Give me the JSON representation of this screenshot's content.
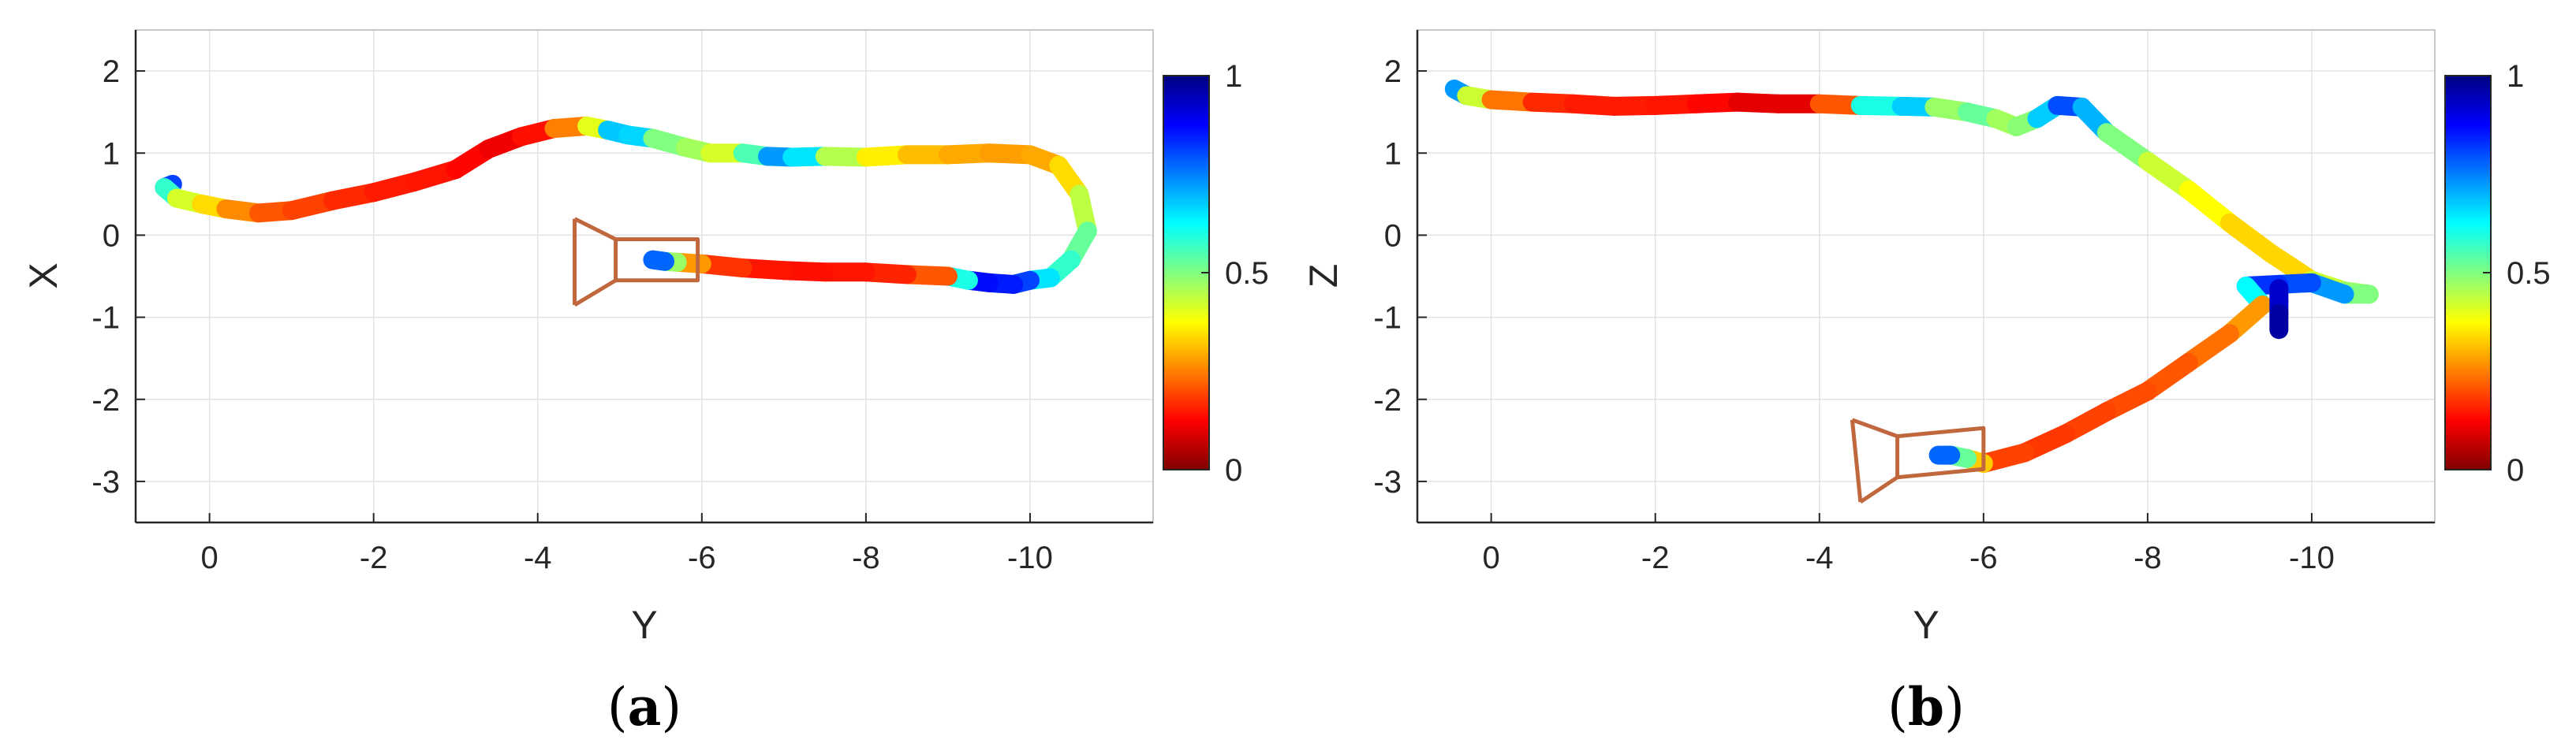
{
  "chart_data": [
    {
      "type": "scatter",
      "panel": "(a)",
      "caption_open": "(",
      "caption_letter": "a",
      "caption_close": ")",
      "xlabel": "Y",
      "ylabel": "X",
      "xlim": [
        0.9,
        -11.5
      ],
      "ylim": [
        -3.5,
        2.5
      ],
      "xticks": [
        0,
        -2,
        -4,
        -6,
        -8,
        -10
      ],
      "xtick_labels": [
        "0",
        "-2",
        "-4",
        "-6",
        "-8",
        "-10"
      ],
      "yticks": [
        2,
        1,
        0,
        -1,
        -2,
        -3
      ],
      "ytick_labels": [
        "2",
        "1",
        "0",
        "-1",
        "-2",
        "-3"
      ],
      "grid": true,
      "colorbar": {
        "colormap": "jet",
        "range": [
          0,
          1
        ],
        "ticks": [
          1,
          0.5,
          0
        ],
        "tick_labels": [
          "1",
          "0.5",
          "0"
        ]
      },
      "trajectory": [
        {
          "x": -0.45,
          "y": 0.62,
          "c": 0.08
        },
        {
          "x": -0.55,
          "y": 0.58,
          "c": 0.3
        },
        {
          "x": -0.4,
          "y": 0.45,
          "c": 0.55
        },
        {
          "x": -0.1,
          "y": 0.38,
          "c": 0.62
        },
        {
          "x": 0.2,
          "y": 0.32,
          "c": 0.7
        },
        {
          "x": 0.6,
          "y": 0.27,
          "c": 0.78
        },
        {
          "x": 1.0,
          "y": 0.3,
          "c": 0.8
        },
        {
          "x": 1.5,
          "y": 0.42,
          "c": 0.82
        },
        {
          "x": 2.0,
          "y": 0.52,
          "c": 0.85
        },
        {
          "x": 2.5,
          "y": 0.65,
          "c": 0.85
        },
        {
          "x": 3.0,
          "y": 0.8,
          "c": 0.86
        },
        {
          "x": 3.4,
          "y": 1.05,
          "c": 0.88
        },
        {
          "x": 3.8,
          "y": 1.2,
          "c": 0.9
        },
        {
          "x": 4.2,
          "y": 1.3,
          "c": 0.82
        },
        {
          "x": 4.6,
          "y": 1.33,
          "c": 0.68
        },
        {
          "x": 4.85,
          "y": 1.28,
          "c": 0.52
        },
        {
          "x": 5.1,
          "y": 1.22,
          "c": 0.12
        },
        {
          "x": 5.4,
          "y": 1.18,
          "c": 0.55
        },
        {
          "x": 5.8,
          "y": 1.07,
          "c": 0.45
        },
        {
          "x": 6.1,
          "y": 1.0,
          "c": 0.62
        },
        {
          "x": 6.5,
          "y": 1.0,
          "c": 0.55
        },
        {
          "x": 6.8,
          "y": 0.96,
          "c": 0.35
        },
        {
          "x": 7.1,
          "y": 0.95,
          "c": 0.2
        },
        {
          "x": 7.5,
          "y": 0.96,
          "c": 0.5
        },
        {
          "x": 8.0,
          "y": 0.95,
          "c": 0.6
        },
        {
          "x": 8.5,
          "y": 0.98,
          "c": 0.68
        },
        {
          "x": 9.0,
          "y": 0.98,
          "c": 0.7
        },
        {
          "x": 9.5,
          "y": 1.0,
          "c": 0.72
        },
        {
          "x": 10.0,
          "y": 0.98,
          "c": 0.72
        },
        {
          "x": 10.35,
          "y": 0.85,
          "c": 0.7
        },
        {
          "x": 10.6,
          "y": 0.5,
          "c": 0.62
        },
        {
          "x": 10.7,
          "y": 0.05,
          "c": 0.5
        },
        {
          "x": 10.5,
          "y": -0.3,
          "c": 0.45
        },
        {
          "x": 10.25,
          "y": -0.52,
          "c": 0.4
        },
        {
          "x": 10.0,
          "y": -0.55,
          "c": 0.3
        },
        {
          "x": 9.8,
          "y": -0.6,
          "c": 0.08
        },
        {
          "x": 9.5,
          "y": -0.58,
          "c": 0.22
        },
        {
          "x": 9.25,
          "y": -0.55,
          "c": 0.05
        },
        {
          "x": 9.0,
          "y": -0.5,
          "c": 0.75
        },
        {
          "x": 8.5,
          "y": -0.48,
          "c": 0.83
        },
        {
          "x": 8.0,
          "y": -0.45,
          "c": 0.85
        },
        {
          "x": 7.5,
          "y": -0.45,
          "c": 0.86
        },
        {
          "x": 7.0,
          "y": -0.43,
          "c": 0.86
        },
        {
          "x": 6.5,
          "y": -0.4,
          "c": 0.85
        },
        {
          "x": 6.0,
          "y": -0.35,
          "c": 0.8
        },
        {
          "x": 5.7,
          "y": -0.33,
          "c": 0.65
        },
        {
          "x": 5.55,
          "y": -0.32,
          "c": 0.4
        },
        {
          "x": 5.4,
          "y": -0.3,
          "c": 0.05
        }
      ],
      "camera": {
        "color": "#c0673d",
        "back": [
          {
            "x": 4.45,
            "y": 0.2
          },
          {
            "x": 4.45,
            "y": -0.85
          }
        ],
        "front": [
          {
            "x": 4.95,
            "y": -0.05
          },
          {
            "x": 4.95,
            "y": -0.55
          },
          {
            "x": 5.95,
            "y": -0.55
          },
          {
            "x": 5.95,
            "y": -0.05
          }
        ]
      }
    },
    {
      "type": "scatter",
      "panel": "(b)",
      "caption_open": "(",
      "caption_letter": "b",
      "caption_close": ")",
      "xlabel": "Y",
      "ylabel": "Z",
      "xlim": [
        0.9,
        -11.5
      ],
      "ylim": [
        -3.5,
        2.5
      ],
      "xticks": [
        0,
        -2,
        -4,
        -6,
        -8,
        -10
      ],
      "xtick_labels": [
        "0",
        "-2",
        "-4",
        "-6",
        "-8",
        "-10"
      ],
      "yticks": [
        2,
        1,
        0,
        -1,
        -2,
        -3
      ],
      "ytick_labels": [
        "2",
        "1",
        "0",
        "-1",
        "-2",
        "-3"
      ],
      "grid": true,
      "colorbar": {
        "colormap": "jet",
        "range": [
          0,
          1
        ],
        "ticks": [
          1,
          0.5,
          0
        ],
        "tick_labels": [
          "1",
          "0.5",
          "0"
        ]
      },
      "trajectory": [
        {
          "x": -0.45,
          "y": 1.78,
          "c": 0.1
        },
        {
          "x": -0.3,
          "y": 1.7,
          "c": 0.45
        },
        {
          "x": 0.0,
          "y": 1.65,
          "c": 0.7
        },
        {
          "x": 0.5,
          "y": 1.62,
          "c": 0.82
        },
        {
          "x": 1.0,
          "y": 1.6,
          "c": 0.85
        },
        {
          "x": 1.5,
          "y": 1.57,
          "c": 0.85
        },
        {
          "x": 2.0,
          "y": 1.58,
          "c": 0.85
        },
        {
          "x": 2.5,
          "y": 1.6,
          "c": 0.86
        },
        {
          "x": 3.0,
          "y": 1.62,
          "c": 0.88
        },
        {
          "x": 3.5,
          "y": 1.6,
          "c": 0.92
        },
        {
          "x": 4.0,
          "y": 1.6,
          "c": 0.88
        },
        {
          "x": 4.5,
          "y": 1.58,
          "c": 0.7
        },
        {
          "x": 5.0,
          "y": 1.57,
          "c": 0.1
        },
        {
          "x": 5.4,
          "y": 1.56,
          "c": 0.55
        },
        {
          "x": 5.8,
          "y": 1.5,
          "c": 0.5
        },
        {
          "x": 6.15,
          "y": 1.42,
          "c": 0.45
        },
        {
          "x": 6.4,
          "y": 1.32,
          "c": 0.62
        },
        {
          "x": 6.65,
          "y": 1.42,
          "c": 0.4
        },
        {
          "x": 6.9,
          "y": 1.58,
          "c": 0.25
        },
        {
          "x": 7.2,
          "y": 1.56,
          "c": 0.15
        },
        {
          "x": 7.5,
          "y": 1.25,
          "c": 0.45
        },
        {
          "x": 8.0,
          "y": 0.9,
          "c": 0.55
        },
        {
          "x": 8.5,
          "y": 0.55,
          "c": 0.6
        },
        {
          "x": 9.0,
          "y": 0.15,
          "c": 0.65
        },
        {
          "x": 9.5,
          "y": -0.22,
          "c": 0.68
        },
        {
          "x": 10.0,
          "y": -0.55,
          "c": 0.65
        },
        {
          "x": 10.4,
          "y": -0.68,
          "c": 0.5
        },
        {
          "x": 10.7,
          "y": -0.72,
          "c": 0.55
        },
        {
          "x": 10.4,
          "y": -0.72,
          "c": 0.45
        },
        {
          "x": 10.0,
          "y": -0.58,
          "c": 0.1
        },
        {
          "x": 9.6,
          "y": -0.6,
          "c": 0.3
        },
        {
          "x": 9.2,
          "y": -0.62,
          "c": 0.05
        },
        {
          "x": 9.4,
          "y": -0.85,
          "c": 0.7
        },
        {
          "x": 9.0,
          "y": -1.2,
          "c": 0.75
        },
        {
          "x": 8.5,
          "y": -1.55,
          "c": 0.78
        },
        {
          "x": 8.0,
          "y": -1.9,
          "c": 0.8
        },
        {
          "x": 7.5,
          "y": -2.15,
          "c": 0.8
        },
        {
          "x": 7.0,
          "y": -2.42,
          "c": 0.82
        },
        {
          "x": 6.5,
          "y": -2.65,
          "c": 0.82
        },
        {
          "x": 6.0,
          "y": -2.78,
          "c": 0.8
        },
        {
          "x": 5.8,
          "y": -2.72,
          "c": 0.55
        },
        {
          "x": 5.6,
          "y": -2.68,
          "c": 0.4
        },
        {
          "x": 5.45,
          "y": -2.68,
          "c": 0.05
        }
      ],
      "branch": [
        {
          "x": 9.6,
          "y": -0.65,
          "c": 0.05
        },
        {
          "x": 9.6,
          "y": -0.8,
          "c": 0.1
        },
        {
          "x": 9.6,
          "y": -0.95,
          "c": 0.05
        },
        {
          "x": 9.6,
          "y": -1.15,
          "c": 0.02
        }
      ],
      "camera": {
        "color": "#c0673d",
        "back": [
          {
            "x": 4.4,
            "y": -2.25
          },
          {
            "x": 4.5,
            "y": -3.25
          }
        ],
        "front": [
          {
            "x": 4.95,
            "y": -2.45
          },
          {
            "x": 4.95,
            "y": -2.95
          },
          {
            "x": 6.0,
            "y": -2.85
          },
          {
            "x": 6.0,
            "y": -2.35
          }
        ]
      }
    }
  ]
}
